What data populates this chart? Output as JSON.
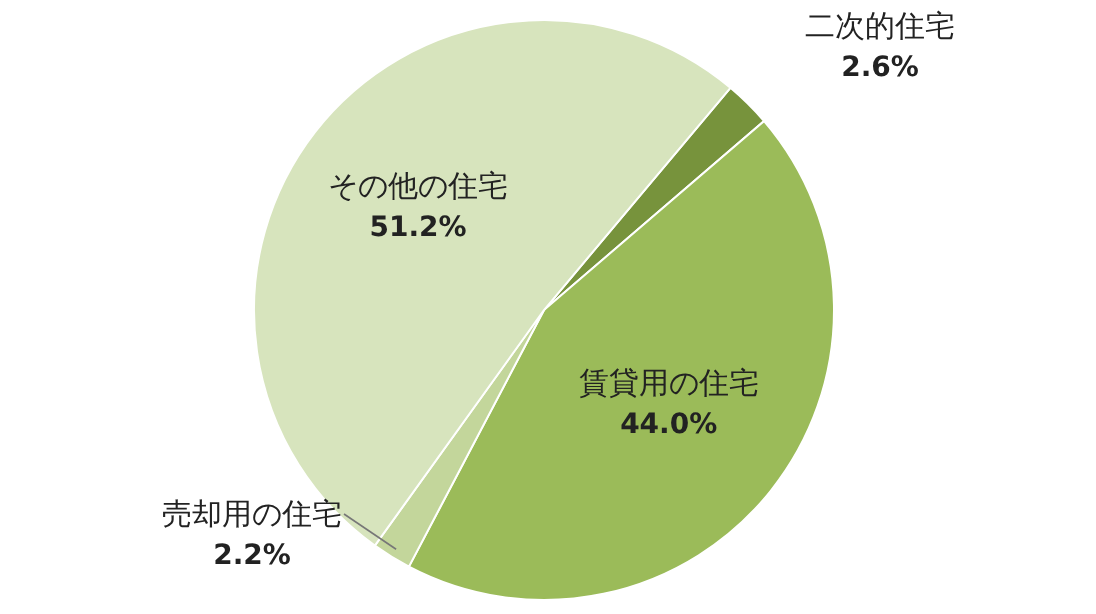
{
  "chart_data": {
    "type": "pie",
    "categories": [
      "二次的住宅",
      "賃貸用の住宅",
      "売却用の住宅",
      "その他の住宅"
    ],
    "values": [
      2.6,
      44.0,
      2.2,
      51.2
    ],
    "colors": [
      "#77933c",
      "#9bbb59",
      "#c3d69b",
      "#d7e4bd"
    ],
    "value_labels": [
      "2.6%",
      "44.0%",
      "2.2%",
      "51.2%"
    ],
    "legend": false
  }
}
